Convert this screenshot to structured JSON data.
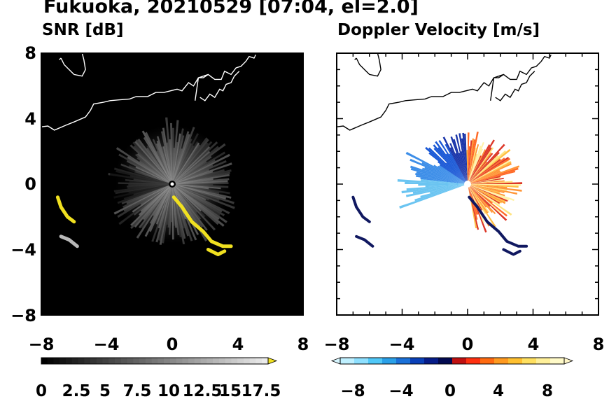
{
  "figure": {
    "title": "Fukuoka, 20210529 [07:04, el=2.0]"
  },
  "chart_data": [
    {
      "type": "heatmap",
      "title": "SNR [dB]",
      "xlim": [
        -8,
        8
      ],
      "ylim": [
        -8,
        8
      ],
      "x_ticks": [
        "−8",
        "−4",
        "0",
        "4",
        "8"
      ],
      "y_ticks": [
        "8",
        "4",
        "0",
        "−4",
        "−8"
      ],
      "background": "#000000",
      "colorbar": {
        "range": [
          0,
          18.5
        ],
        "tick_labels": [
          "0",
          "2.5",
          "5",
          "7.5",
          "10",
          "12.5",
          "15",
          "17.5"
        ],
        "extend": "max",
        "extend_color": "#f0e020"
      }
    },
    {
      "type": "heatmap",
      "title": "Doppler Velocity [m/s]",
      "xlim": [
        -8,
        8
      ],
      "ylim": [
        -8,
        8
      ],
      "x_ticks": [
        "−8",
        "−4",
        "0",
        "4",
        "8"
      ],
      "y_ticks": [],
      "background": "#ffffff",
      "colorbar": {
        "range": [
          -10,
          10
        ],
        "tick_labels": [
          "−8",
          "−4",
          "0",
          "4",
          "8"
        ],
        "extend": "both",
        "extend_colors": [
          "#d6f6ff",
          "#fff6c8"
        ]
      }
    }
  ]
}
